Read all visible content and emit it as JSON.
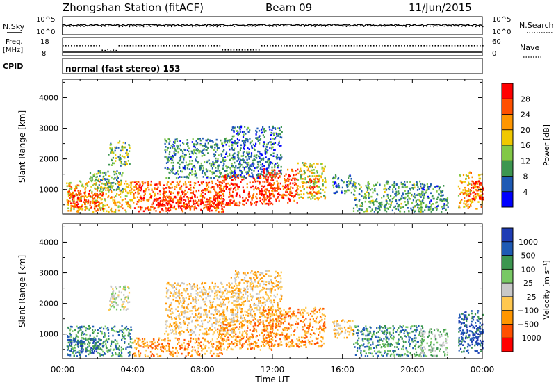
{
  "header": {
    "station": "Zhongshan Station (fitACF)",
    "beam": "Beam 09",
    "date": "11/Jun/2015"
  },
  "labels": {
    "nsky": "N.Sky",
    "nsearch": "N.Search",
    "freq_line1": "Freq.",
    "freq_line2": "[MHz]",
    "nave": "Nave",
    "cpid": "CPID",
    "cpid_value": "normal (fast stereo) 153",
    "nsky_ticks": [
      "10^5",
      "10^0"
    ],
    "nsearch_ticks": [
      "10^5",
      "10^0"
    ],
    "freq_ticks": [
      "18",
      "8"
    ],
    "nave_ticks": [
      "60",
      "0"
    ]
  },
  "colors": {
    "power": [
      "#0000ff",
      "#1e5ab4",
      "#3c9650",
      "#82c846",
      "#f0c800",
      "#ff9600",
      "#ff5000",
      "#ff0000"
    ],
    "velocity": [
      "#ff0000",
      "#ff5000",
      "#ff9600",
      "#ffc850",
      "#c8c8c8",
      "#78c864",
      "#3c9650",
      "#1e5ab4",
      "#1e3cb4"
    ],
    "axis": "#000000"
  },
  "chart_data": [
    {
      "type": "heatmap",
      "title": "Power",
      "xlabel": "",
      "ylabel": "Slant Range [km]",
      "x_ticks": [
        "00:00",
        "04:00",
        "08:00",
        "12:00",
        "16:00",
        "20:00",
        "00:00"
      ],
      "y_ticks": [
        1000,
        2000,
        3000,
        4000
      ],
      "ylim": [
        200,
        4600
      ],
      "xlim_hours": [
        0,
        24
      ],
      "colorbar": {
        "label": "Power [dB]",
        "ticks": [
          "4",
          "8",
          "12",
          "16",
          "20",
          "24",
          "28"
        ],
        "range": [
          0,
          30
        ]
      },
      "regions": [
        {
          "t": [
            0.2,
            4.0
          ],
          "r": [
            300,
            1300
          ],
          "v": 18
        },
        {
          "t": [
            0.3,
            2.3
          ],
          "r": [
            400,
            1000
          ],
          "v": 26
        },
        {
          "t": [
            1.5,
            3.4
          ],
          "r": [
            1000,
            1650
          ],
          "v": 10
        },
        {
          "t": [
            2.6,
            3.8
          ],
          "r": [
            1800,
            2600
          ],
          "v": 12
        },
        {
          "t": [
            4.0,
            9.2
          ],
          "r": [
            300,
            1300
          ],
          "v": 24
        },
        {
          "t": [
            5.0,
            9.0
          ],
          "r": [
            400,
            800
          ],
          "v": 28
        },
        {
          "t": [
            5.8,
            9.8
          ],
          "r": [
            1400,
            2700
          ],
          "v": 9
        },
        {
          "t": [
            8.8,
            12.0
          ],
          "r": [
            500,
            1500
          ],
          "v": 26
        },
        {
          "t": [
            9.6,
            12.5
          ],
          "r": [
            1400,
            3100
          ],
          "v": 7
        },
        {
          "t": [
            11.4,
            13.4
          ],
          "r": [
            600,
            1700
          ],
          "v": 25
        },
        {
          "t": [
            13.4,
            15.0
          ],
          "r": [
            700,
            1900
          ],
          "v": 16
        },
        {
          "t": [
            14.0,
            14.6
          ],
          "r": [
            900,
            1400
          ],
          "v": 28
        },
        {
          "t": [
            15.4,
            16.6
          ],
          "r": [
            900,
            1500
          ],
          "v": 8
        },
        {
          "t": [
            16.6,
            20.6
          ],
          "r": [
            300,
            1300
          ],
          "v": 10
        },
        {
          "t": [
            20.4,
            22.0
          ],
          "r": [
            300,
            1200
          ],
          "v": 8
        },
        {
          "t": [
            22.6,
            24.0
          ],
          "r": [
            400,
            1600
          ],
          "v": 20
        },
        {
          "t": [
            23.2,
            24.0
          ],
          "r": [
            700,
            1300
          ],
          "v": 28
        }
      ]
    },
    {
      "type": "heatmap",
      "title": "Velocity",
      "xlabel": "Time UT",
      "ylabel": "Slant Range [km]",
      "x_ticks": [
        "00:00",
        "04:00",
        "08:00",
        "12:00",
        "16:00",
        "20:00",
        "00:00"
      ],
      "y_ticks": [
        1000,
        2000,
        3000,
        4000
      ],
      "ylim": [
        200,
        4600
      ],
      "xlim_hours": [
        0,
        24
      ],
      "colorbar": {
        "label": "Velocity [m s⁻¹]",
        "ticks": [
          "1000",
          "500",
          "100",
          "25",
          "−25",
          "−100",
          "−500",
          "−1000"
        ]
      },
      "regions": [
        {
          "t": [
            0.2,
            4.0
          ],
          "r": [
            300,
            1300
          ],
          "v": 6
        },
        {
          "t": [
            0.3,
            2.3
          ],
          "r": [
            400,
            900
          ],
          "v": 7
        },
        {
          "t": [
            2.6,
            3.8
          ],
          "r": [
            1800,
            2600
          ],
          "v": 4
        },
        {
          "t": [
            4.0,
            9.2
          ],
          "r": [
            300,
            900
          ],
          "v": 2
        },
        {
          "t": [
            5.8,
            9.8
          ],
          "r": [
            1000,
            2700
          ],
          "v": 3
        },
        {
          "t": [
            8.8,
            12.0
          ],
          "r": [
            500,
            1500
          ],
          "v": 2
        },
        {
          "t": [
            9.6,
            12.5
          ],
          "r": [
            1400,
            3100
          ],
          "v": 3
        },
        {
          "t": [
            11.4,
            15.0
          ],
          "r": [
            600,
            1900
          ],
          "v": 2
        },
        {
          "t": [
            15.4,
            16.6
          ],
          "r": [
            900,
            1500
          ],
          "v": 3
        },
        {
          "t": [
            16.6,
            20.6
          ],
          "r": [
            300,
            1300
          ],
          "v": 6
        },
        {
          "t": [
            20.4,
            22.0
          ],
          "r": [
            300,
            1200
          ],
          "v": 5
        },
        {
          "t": [
            22.6,
            24.0
          ],
          "r": [
            400,
            1800
          ],
          "v": 7
        },
        {
          "t": [
            23.3,
            24.0
          ],
          "r": [
            700,
            1300
          ],
          "v": 8
        }
      ]
    }
  ]
}
